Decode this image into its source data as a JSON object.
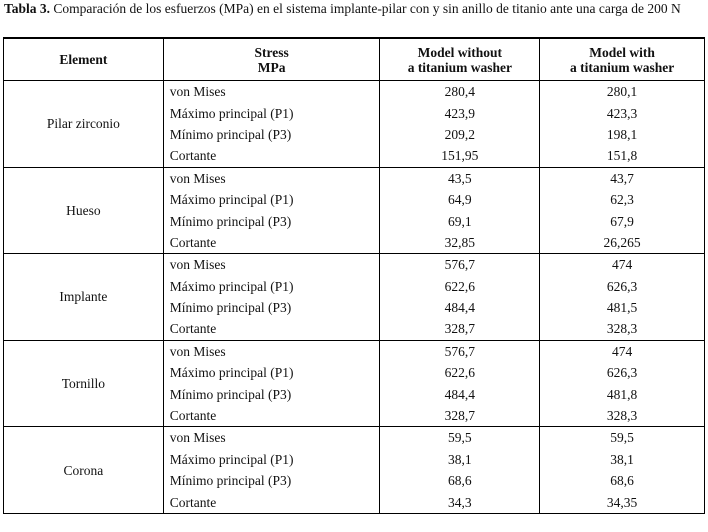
{
  "caption": {
    "label": "Tabla 3.",
    "text": "Comparación de los esfuerzos (MPa) en el sistema implante-pilar con y sin anillo de titanio ante una carga de 200 N"
  },
  "table": {
    "header": {
      "element": "Element",
      "stress": [
        "Stress",
        "MPa"
      ],
      "without": [
        "Model without",
        "a titanium washer"
      ],
      "with": [
        "Model with",
        "a titanium washer"
      ]
    },
    "groups": [
      {
        "element": "Pilar zirconio",
        "rows": [
          [
            "von Mises",
            "280,4",
            "280,1"
          ],
          [
            "Máximo principal (P1)",
            "423,9",
            "423,3"
          ],
          [
            "Mínimo principal (P3)",
            "209,2",
            "198,1"
          ],
          [
            "Cortante",
            "151,95",
            "151,8"
          ]
        ]
      },
      {
        "element": "Hueso",
        "rows": [
          [
            "von Mises",
            "43,5",
            "43,7"
          ],
          [
            "Máximo principal (P1)",
            "64,9",
            "62,3"
          ],
          [
            "Mínimo principal (P3)",
            "69,1",
            "67,9"
          ],
          [
            "Cortante",
            "32,85",
            "26,265"
          ]
        ]
      },
      {
        "element": "Implante",
        "rows": [
          [
            "von Mises",
            "576,7",
            "474"
          ],
          [
            "Máximo principal (P1)",
            "622,6",
            "626,3"
          ],
          [
            "Mínimo principal (P3)",
            "484,4",
            "481,5"
          ],
          [
            "Cortante",
            "328,7",
            "328,3"
          ]
        ]
      },
      {
        "element": "Tornillo",
        "rows": [
          [
            "von Mises",
            "576,7",
            "474"
          ],
          [
            "Máximo principal (P1)",
            "622,6",
            "626,3"
          ],
          [
            "Mínimo principal (P3)",
            "484,4",
            "481,8"
          ],
          [
            "Cortante",
            "328,7",
            "328,3"
          ]
        ]
      },
      {
        "element": "Corona",
        "rows": [
          [
            "von Mises",
            "59,5",
            "59,5"
          ],
          [
            "Máximo principal (P1)",
            "38,1",
            "38,1"
          ],
          [
            "Mínimo principal (P3)",
            "68,6",
            "68,6"
          ],
          [
            "Cortante",
            "34,3",
            "34,35"
          ]
        ]
      }
    ]
  }
}
